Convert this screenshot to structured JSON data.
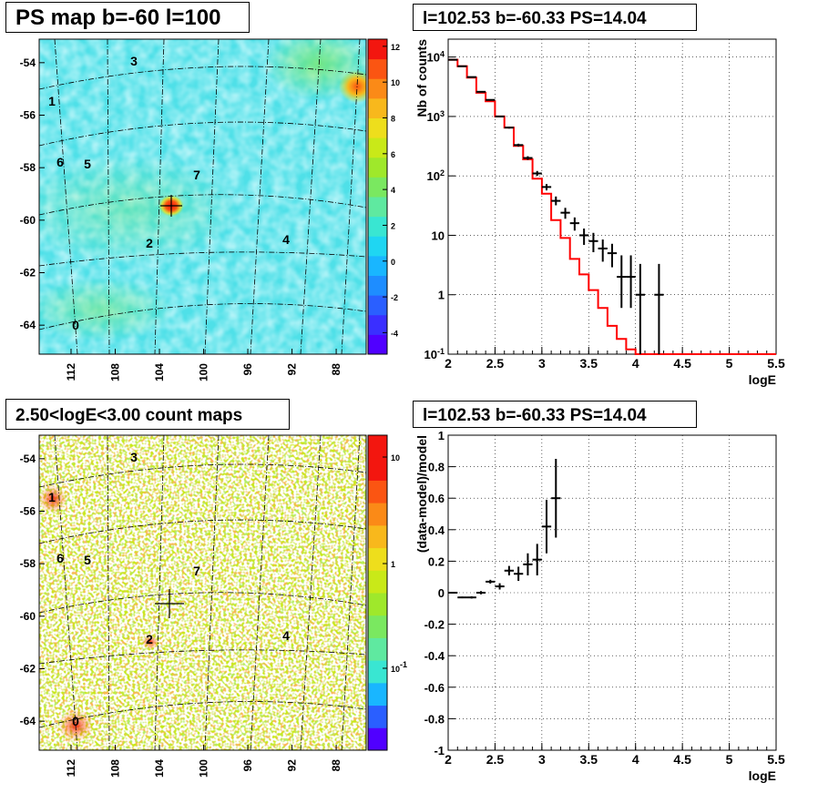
{
  "colors": {
    "frame": "#000000",
    "model_line": "#ff0000",
    "data_marker": "#000000",
    "grid": "#000000",
    "colorbar": [
      "#5000ff",
      "#3a2fff",
      "#2a5fff",
      "#1e8dff",
      "#19b6ff",
      "#1fd6f2",
      "#39e6d2",
      "#5fe9a0",
      "#7ae860",
      "#9fe82b",
      "#c9e918",
      "#eede1c",
      "#f8b81c",
      "#fb8a17",
      "#fb5512",
      "#f3160f"
    ]
  },
  "panels": {
    "ps_map": {
      "title": "PS map b=-60 l=100",
      "y_ticks": [
        "-54",
        "-56",
        "-58",
        "-60",
        "-62",
        "-64"
      ],
      "x_ticks": [
        "112",
        "108",
        "104",
        "100",
        "96",
        "92",
        "88"
      ],
      "colorbar_ticks": [
        "12",
        "10",
        "8",
        "6",
        "4",
        "2",
        "0",
        "-2",
        "-4"
      ],
      "source_labels": [
        "0",
        "1",
        "2",
        "3",
        "4",
        "5",
        "6",
        "7"
      ],
      "background_icon": "sky-map-heat"
    },
    "count_map": {
      "title": "2.50<logE<3.00 count maps",
      "y_ticks": [
        "-54",
        "-56",
        "-58",
        "-60",
        "-62",
        "-64"
      ],
      "x_ticks": [
        "112",
        "108",
        "104",
        "100",
        "96",
        "92",
        "88"
      ],
      "colorbar_ticks": [
        "1",
        "10",
        "10^-1"
      ],
      "source_labels": [
        "0",
        "1",
        "2",
        "3",
        "4",
        "5",
        "6",
        "7"
      ],
      "background_icon": "sky-map-counts"
    },
    "spectrum": {
      "title": "l=102.53 b=-60.33 PS=14.04",
      "xlabel": "logE",
      "ylabel": "Nb of counts"
    },
    "residual": {
      "title": "l=102.53 b=-60.33 PS=14.04",
      "xlabel": "logE",
      "ylabel": "(data-model)/model"
    }
  },
  "chart_data": [
    {
      "type": "line",
      "panel": "spectrum",
      "xlim": [
        2,
        5.5
      ],
      "ylim": [
        0.1,
        20000
      ],
      "yscale": "log",
      "grid": true,
      "x_ticks": [
        "2",
        "2.5",
        "3",
        "3.5",
        "4",
        "4.5",
        "5",
        "5.5"
      ],
      "y_ticks": [
        "10^-1",
        "1",
        "10",
        "10^2",
        "10^3",
        "10^4"
      ],
      "series": [
        {
          "style": "step",
          "bin_edges": [
            2.0,
            2.1,
            2.2,
            2.3,
            2.4,
            2.5,
            2.6,
            2.7,
            2.8,
            2.9,
            3.0,
            3.1,
            3.2,
            3.3,
            3.4,
            3.5,
            3.6,
            3.7,
            3.8,
            3.9,
            4.0,
            5.5
          ],
          "values": [
            9000,
            7000,
            4500,
            2500,
            1800,
            1000,
            650,
            320,
            190,
            90,
            50,
            18,
            9,
            4,
            2.2,
            1.2,
            0.6,
            0.3,
            0.18,
            0.12,
            0.1
          ]
        },
        {
          "style": "points",
          "x": [
            2.05,
            2.15,
            2.25,
            2.35,
            2.45,
            2.55,
            2.65,
            2.75,
            2.85,
            2.95,
            3.05,
            3.15,
            3.25,
            3.35,
            3.45,
            3.55,
            3.65,
            3.75,
            3.85,
            3.95,
            4.05,
            4.25
          ],
          "y": [
            9000,
            7000,
            4600,
            2600,
            1900,
            1000,
            650,
            330,
            200,
            110,
            65,
            38,
            24,
            16,
            10,
            8,
            6,
            5,
            2,
            2,
            1,
            1
          ],
          "yerr_low": [
            8900,
            6910,
            4530,
            2550,
            1850,
            970,
            625,
            312,
            186,
            100,
            57,
            32,
            19,
            12,
            6.9,
            5.2,
            3.6,
            2.9,
            0.6,
            0.6,
            0.1,
            0.1
          ],
          "yerr_high": [
            9100,
            7090,
            4670,
            2650,
            1950,
            1030,
            675,
            348,
            214,
            121,
            73,
            45,
            29,
            20,
            13,
            11,
            8.5,
            7.2,
            4.6,
            4.6,
            3.3,
            3.3
          ]
        }
      ]
    },
    {
      "type": "scatter",
      "panel": "residual",
      "xlim": [
        2,
        5.5
      ],
      "ylim": [
        -1,
        1
      ],
      "grid": true,
      "x_ticks": [
        "2",
        "2.5",
        "3",
        "3.5",
        "4",
        "4.5",
        "5",
        "5.5"
      ],
      "y_ticks": [
        "-1",
        "-0.8",
        "-0.6",
        "-0.4",
        "-0.2",
        "0",
        "0.2",
        "0.4",
        "0.6",
        "0.8",
        "1"
      ],
      "series": [
        {
          "x": [
            2.05,
            2.15,
            2.25,
            2.35,
            2.45,
            2.55,
            2.65,
            2.75,
            2.85,
            2.95,
            3.05,
            3.15
          ],
          "y": [
            0.0,
            -0.03,
            -0.03,
            0.0,
            0.07,
            0.04,
            0.14,
            0.12,
            0.18,
            0.21,
            0.42,
            0.6
          ],
          "yerr": [
            0.004,
            0.005,
            0.007,
            0.01,
            0.012,
            0.02,
            0.03,
            0.045,
            0.07,
            0.1,
            0.17,
            0.25
          ]
        }
      ]
    }
  ]
}
